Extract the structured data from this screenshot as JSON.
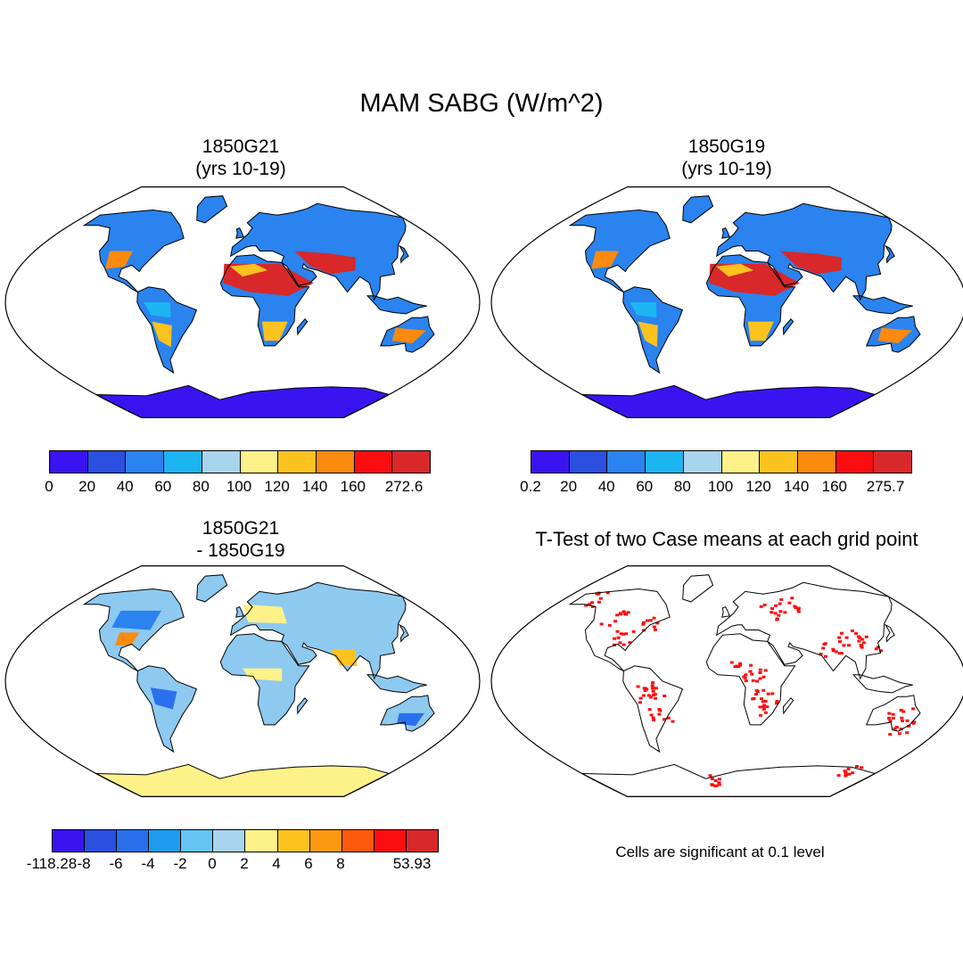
{
  "title": "MAM SABG (W/m^2)",
  "panels": [
    {
      "id": "p1",
      "title_line1": "1850G21",
      "title_line2": "(yrs 10-19)",
      "colors": [
        "#3a14f0",
        "#2b50e0",
        "#2a83ee",
        "#1cb5f2",
        "#a8d4ee",
        "#fdf28a",
        "#fcc21e",
        "#fb8a0e",
        "#fc0e10",
        "#d8282a"
      ],
      "tick_labels": [
        "0",
        "20",
        "40",
        "60",
        "80",
        "100",
        "120",
        "140",
        "160",
        "272.6"
      ]
    },
    {
      "id": "p2",
      "title_line1": "1850G19",
      "title_line2": "(yrs 10-19)",
      "colors": [
        "#3a14f0",
        "#2b50e0",
        "#2a83ee",
        "#1cb5f2",
        "#a8d4ee",
        "#fdf28a",
        "#fcc21e",
        "#fb8a0e",
        "#fc0e10",
        "#d8282a"
      ],
      "tick_labels": [
        "0.2",
        "20",
        "40",
        "60",
        "80",
        "100",
        "120",
        "140",
        "160",
        "275.7"
      ]
    },
    {
      "id": "p3",
      "title_line1": "1850G21",
      "title_line2": "- 1850G19",
      "colors": [
        "#3a14f0",
        "#2b50e0",
        "#2a70ec",
        "#1f9cf0",
        "#66c3f2",
        "#a8d4ee",
        "#fdf28a",
        "#fcc21e",
        "#fb9a10",
        "#fb5a0c",
        "#fc0e10",
        "#d8282a"
      ],
      "tick_labels": [
        "-118.28",
        "-8",
        "-6",
        "-4",
        "-2",
        "0",
        "2",
        "4",
        "6",
        "8",
        "53.93"
      ]
    },
    {
      "id": "p4",
      "title_line1": "T-Test of two Case means at each grid point",
      "title_line2": "",
      "note": "Cells are significant at 0.1 level"
    }
  ]
}
